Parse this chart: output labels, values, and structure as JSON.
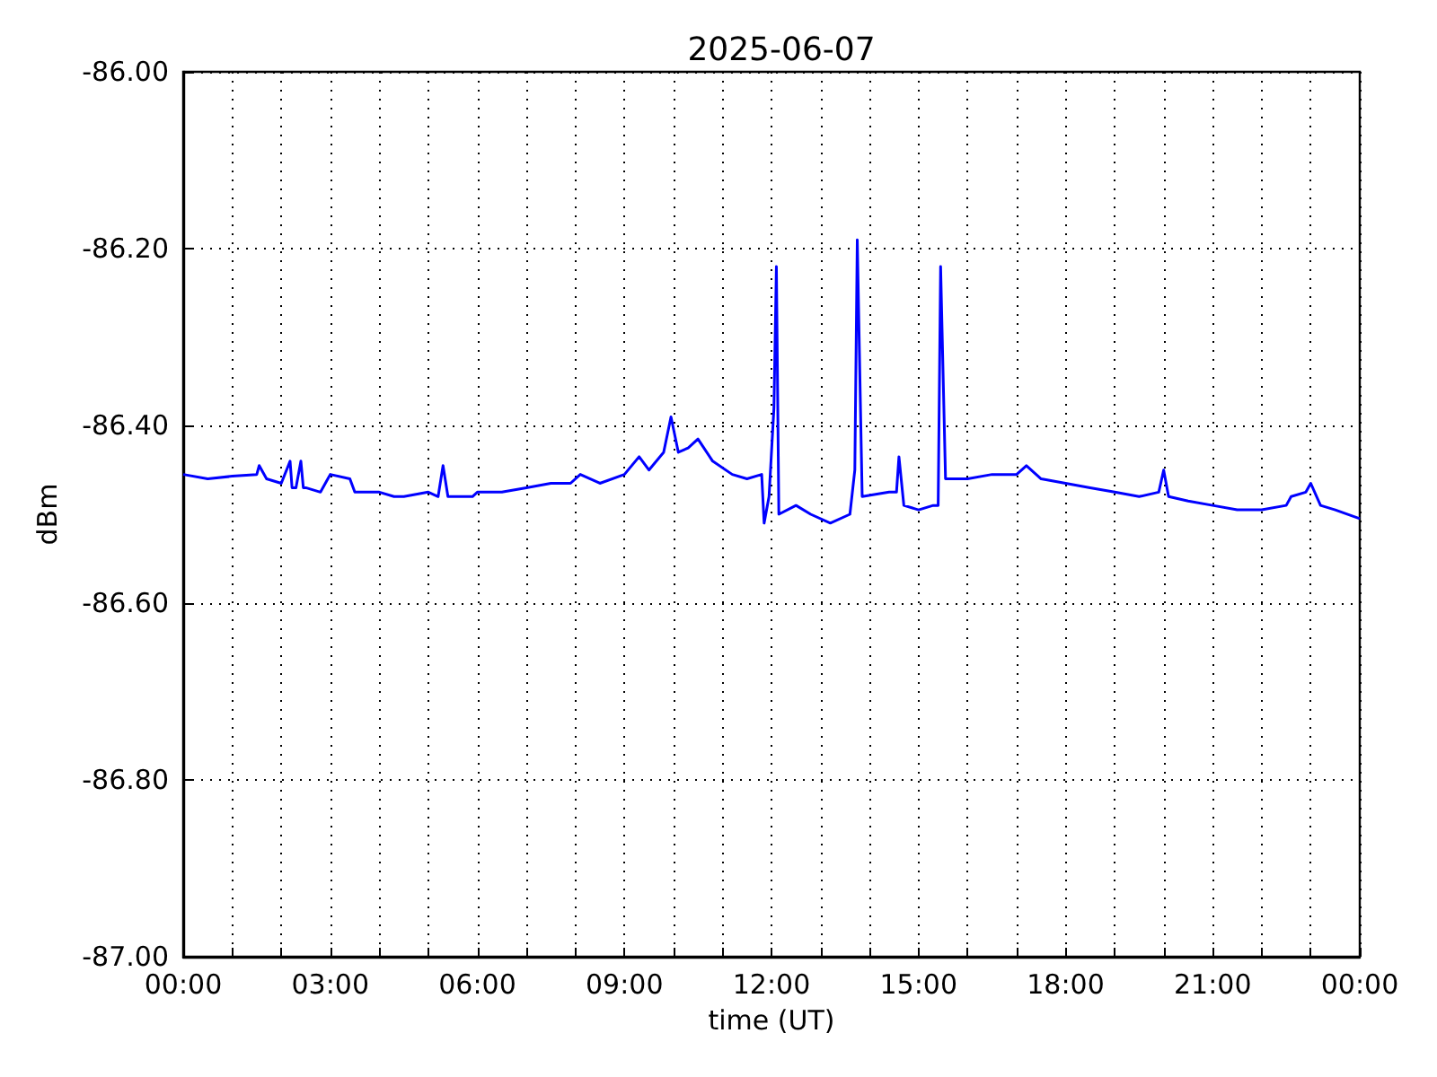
{
  "chart_data": {
    "type": "line",
    "title": "2025-06-07",
    "xlabel": "time (UT)",
    "ylabel": "dBm",
    "xlim": [
      0,
      24
    ],
    "xticks": [
      {
        "value": 0,
        "label": "00:00"
      },
      {
        "value": 1,
        "label": null
      },
      {
        "value": 2,
        "label": null
      },
      {
        "value": 3,
        "label": "03:00"
      },
      {
        "value": 4,
        "label": null
      },
      {
        "value": 5,
        "label": null
      },
      {
        "value": 6,
        "label": "06:00"
      },
      {
        "value": 7,
        "label": null
      },
      {
        "value": 8,
        "label": null
      },
      {
        "value": 9,
        "label": "09:00"
      },
      {
        "value": 10,
        "label": null
      },
      {
        "value": 11,
        "label": null
      },
      {
        "value": 12,
        "label": "12:00"
      },
      {
        "value": 13,
        "label": null
      },
      {
        "value": 14,
        "label": null
      },
      {
        "value": 15,
        "label": "15:00"
      },
      {
        "value": 16,
        "label": null
      },
      {
        "value": 17,
        "label": null
      },
      {
        "value": 18,
        "label": "18:00"
      },
      {
        "value": 19,
        "label": null
      },
      {
        "value": 20,
        "label": null
      },
      {
        "value": 21,
        "label": "21:00"
      },
      {
        "value": 22,
        "label": null
      },
      {
        "value": 23,
        "label": null
      },
      {
        "value": 24,
        "label": "00:00"
      }
    ],
    "ylim": [
      -87,
      -86
    ],
    "yticks": [
      {
        "value": -87,
        "label": "-87.00"
      },
      {
        "value": -86.8,
        "label": "-86.80"
      },
      {
        "value": -86.6,
        "label": "-86.60"
      },
      {
        "value": -86.4,
        "label": "-86.40"
      },
      {
        "value": -86.2,
        "label": "-86.20"
      },
      {
        "value": -86,
        "label": "-86.00"
      }
    ],
    "grid": true,
    "marker": "none",
    "line_style": "solid",
    "series": [
      {
        "color": "#0000ff",
        "x": [
          0,
          0.5,
          1,
          1.5,
          1.55,
          1.7,
          2,
          2.18,
          2.22,
          2.3,
          2.4,
          2.45,
          2.5,
          2.8,
          2.95,
          3,
          3.4,
          3.5,
          4,
          4.3,
          4.5,
          5,
          5.2,
          5.3,
          5.4,
          5.9,
          6,
          6.5,
          7,
          7.5,
          7.9,
          8.1,
          8.5,
          9,
          9.3,
          9.5,
          9.8,
          9.95,
          10.1,
          10.3,
          10.5,
          10.8,
          11.2,
          11.5,
          11.8,
          11.85,
          11.95,
          12.05,
          12.1,
          12.15,
          12.5,
          12.8,
          13.2,
          13.6,
          13.7,
          13.75,
          13.85,
          14.4,
          14.55,
          14.6,
          14.7,
          15,
          15.3,
          15.4,
          15.45,
          15.55,
          16,
          16.5,
          17,
          17.2,
          17.5,
          18,
          18.5,
          19,
          19.5,
          19.9,
          20,
          20.1,
          20.5,
          21,
          21.5,
          22,
          22.5,
          22.6,
          22.9,
          23,
          23.2,
          23.5,
          24
        ],
        "values": [
          -86.455,
          -86.46,
          -86.457,
          -86.455,
          -86.445,
          -86.46,
          -86.465,
          -86.44,
          -86.47,
          -86.47,
          -86.44,
          -86.47,
          -86.47,
          -86.475,
          -86.46,
          -86.455,
          -86.46,
          -86.475,
          -86.475,
          -86.48,
          -86.48,
          -86.475,
          -86.48,
          -86.445,
          -86.48,
          -86.48,
          -86.475,
          -86.475,
          -86.47,
          -86.465,
          -86.465,
          -86.455,
          -86.465,
          -86.455,
          -86.435,
          -86.45,
          -86.43,
          -86.39,
          -86.43,
          -86.425,
          -86.415,
          -86.44,
          -86.455,
          -86.46,
          -86.455,
          -86.51,
          -86.48,
          -86.38,
          -86.22,
          -86.5,
          -86.49,
          -86.5,
          -86.51,
          -86.5,
          -86.45,
          -86.19,
          -86.48,
          -86.475,
          -86.475,
          -86.435,
          -86.49,
          -86.495,
          -86.49,
          -86.49,
          -86.22,
          -86.46,
          -86.46,
          -86.455,
          -86.455,
          -86.445,
          -86.46,
          -86.465,
          -86.47,
          -86.475,
          -86.48,
          -86.475,
          -86.45,
          -86.48,
          -86.485,
          -86.49,
          -86.495,
          -86.495,
          -86.49,
          -86.48,
          -86.475,
          -86.465,
          -86.49,
          -86.495,
          -86.505
        ]
      }
    ]
  }
}
